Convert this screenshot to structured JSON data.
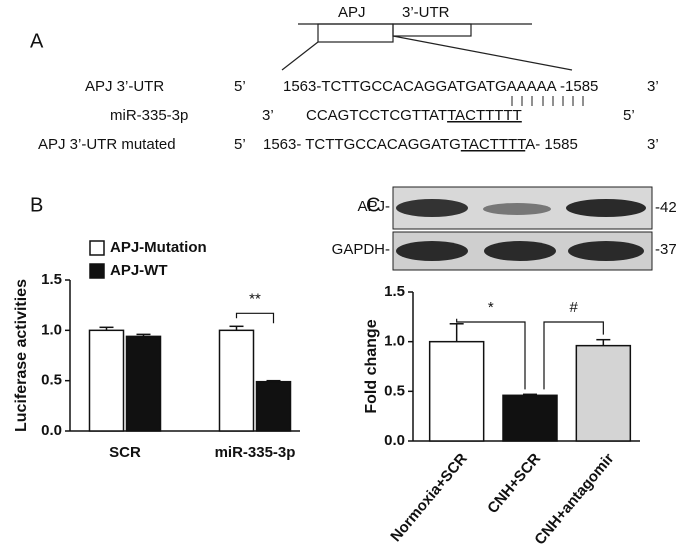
{
  "panel_labels": [
    "A",
    "B",
    "C"
  ],
  "sequence_diagram": {
    "gene_labels": [
      "APJ",
      "3’-UTR"
    ],
    "rows": [
      {
        "label": "APJ 3’-UTR",
        "left_end": "5’",
        "parts": [
          "1563-TCTTGCCACAGGATG",
          "ATGAAAAA",
          " -1585"
        ],
        "right_end": "3’"
      },
      {
        "label": "miR-335-3p",
        "left_end": "3’",
        "parts": [
          "CCAGTCCTCGTTAT",
          "TACTTTTT",
          ""
        ],
        "right_end": "5’"
      },
      {
        "label": "APJ 3’-UTR  mutated",
        "left_end": "5’",
        "parts": [
          "1563- TCTTGCCACAGGATG",
          "TACTTTT",
          "A- 1585"
        ],
        "right_end": "3’"
      }
    ]
  },
  "blot": {
    "labels": [
      "APJ-",
      "GAPDH-"
    ],
    "markers": [
      "-42",
      "-37"
    ]
  },
  "chart_data": [
    {
      "type": "bar",
      "y_label": "Luciferase activities",
      "categories": [
        "SCR",
        "miR-335-3p"
      ],
      "series": [
        {
          "name": "APJ-Mutation",
          "color": "#ffffff",
          "values": [
            1.0,
            1.0
          ],
          "errors": [
            0.03,
            0.04
          ]
        },
        {
          "name": "APJ-WT",
          "color": "#111111",
          "values": [
            0.94,
            0.49
          ],
          "errors": [
            0.02,
            0.01
          ]
        }
      ],
      "ylim": [
        0,
        1.5
      ],
      "yticks": [
        {
          "value": 0,
          "label": "0.0"
        },
        0.5,
        {
          "value": 1,
          "label": "1.0"
        },
        1.5
      ],
      "legend": "upper left",
      "annotations": [
        "**"
      ]
    },
    {
      "type": "bar",
      "y_label": "Fold change",
      "categories": [
        "Normoxia+SCR",
        "CNH+SCR",
        "CNH+antagomir"
      ],
      "values": [
        1.0,
        0.46,
        0.96
      ],
      "errors": [
        0.18,
        0.01,
        0.06
      ],
      "colors": [
        "#ffffff",
        "#111111",
        "#d4d4d4"
      ],
      "ylim": [
        0,
        1.5
      ],
      "yticks": [
        {
          "value": 0,
          "label": "0.0"
        },
        0.5,
        {
          "value": 1,
          "label": "1.0"
        },
        1.5
      ],
      "annotations": [
        "*",
        "#"
      ]
    }
  ]
}
